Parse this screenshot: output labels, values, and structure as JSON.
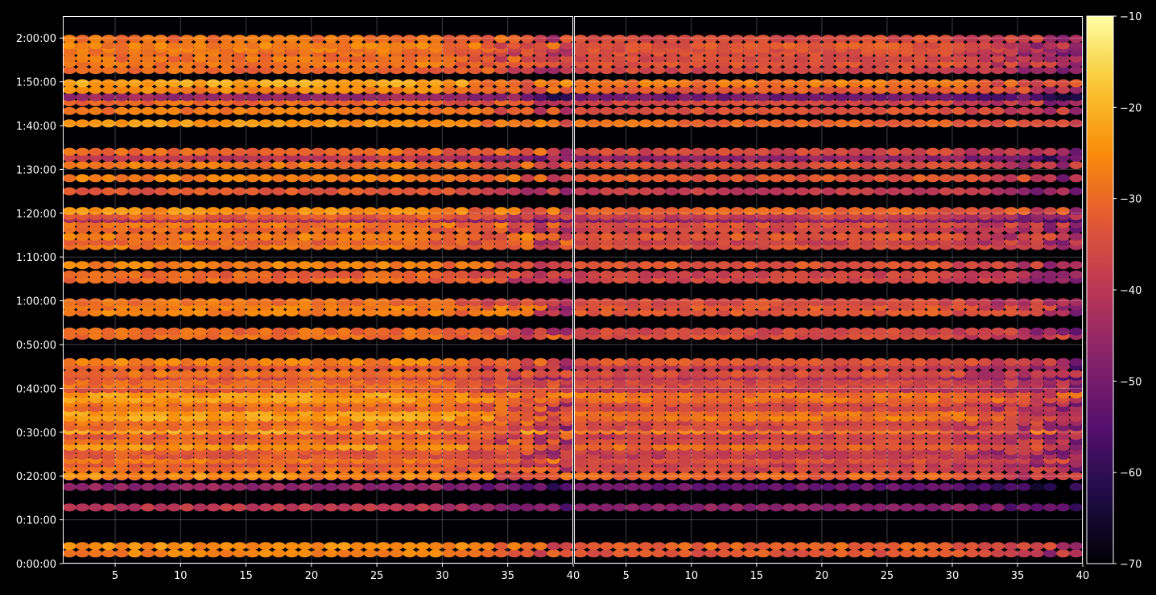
{
  "chart_data": {
    "type": "heatmap",
    "title": "",
    "xlabel": "",
    "ylabel": "",
    "panels": [
      {
        "name": "",
        "xlim": [
          1,
          40
        ],
        "x_ticks": [
          5,
          10,
          15,
          20,
          25,
          30,
          35,
          40
        ],
        "x_tick_labels": [
          "5",
          "10",
          "15",
          "20",
          "25",
          "30",
          "35",
          "40"
        ]
      },
      {
        "name": "",
        "xlim": [
          1,
          40
        ],
        "x_ticks": [
          5,
          10,
          15,
          20,
          25,
          30,
          35,
          40
        ],
        "x_tick_labels": [
          "5",
          "10",
          "15",
          "20",
          "25",
          "30",
          "35",
          "40"
        ]
      }
    ],
    "ylim_seconds": [
      0,
      7500
    ],
    "y_ticks_seconds": [
      0,
      600,
      1200,
      1800,
      2400,
      3000,
      3600,
      4200,
      4800,
      5400,
      6000,
      6600,
      7200
    ],
    "y_tick_labels": [
      "0:00:00",
      "0:10:00",
      "0:20:00",
      "0:30:00",
      "0:40:00",
      "0:50:00",
      "1:00:00",
      "1:10:00",
      "1:20:00",
      "1:30:00",
      "1:40:00",
      "1:50:00",
      "2:00:00"
    ],
    "grid": true,
    "colormap": "inferno",
    "colorbar": {
      "min": -70,
      "max": -10,
      "ticks": [
        -70,
        -60,
        -50,
        -40,
        -30,
        -20,
        -10
      ],
      "tick_labels": [
        "−70",
        "−60",
        "−50",
        "−40",
        "−30",
        "−20",
        "−10"
      ]
    },
    "row_times_seconds": [
      140,
      240,
      770,
      1050,
      1190,
      1200,
      1300,
      1370,
      1420,
      1480,
      1540,
      1600,
      1680,
      1750,
      1820,
      1870,
      1940,
      2000,
      2070,
      2130,
      2200,
      2250,
      2320,
      2390,
      2450,
      2500,
      2560,
      2600,
      2700,
      2760,
      3120,
      3180,
      3440,
      3520,
      3580,
      3890,
      3960,
      4090,
      4350,
      4410,
      4480,
      4580,
      4650,
      4720,
      4760,
      4830,
      5100,
      5280,
      5460,
      5560,
      5640,
      6030,
      6200,
      6320,
      6390,
      6490,
      6580,
      6760,
      6850,
      6920,
      7000,
      7050,
      7100,
      7190
    ],
    "row_levels_db_panel1": [
      -27,
      -25,
      -40,
      -46,
      -52,
      -25,
      -30,
      -32,
      -28,
      -33,
      -32,
      -24,
      -30,
      -32,
      -23,
      -30,
      -29,
      -22,
      -23,
      -30,
      -28,
      -23,
      -23,
      -33,
      -29,
      -30,
      -35,
      -29,
      -33,
      -27,
      -29,
      -30,
      -27,
      -27,
      -29,
      -30,
      -31,
      -27,
      -28,
      -31,
      -27,
      -31,
      -28,
      -40,
      -32,
      -25,
      -33,
      -27,
      -28,
      -40,
      -30,
      -24,
      -28,
      -30,
      -45,
      -26,
      -22,
      -30,
      -28,
      -29,
      -29,
      -28,
      -27,
      -29
    ],
    "row_levels_db_panel2": [
      -33,
      -31,
      -46,
      -52,
      -58,
      -31,
      -36,
      -38,
      -34,
      -39,
      -38,
      -30,
      -36,
      -38,
      -29,
      -36,
      -35,
      -28,
      -29,
      -36,
      -34,
      -29,
      -29,
      -39,
      -35,
      -36,
      -41,
      -35,
      -39,
      -33,
      -35,
      -36,
      -33,
      -33,
      -35,
      -36,
      -37,
      -33,
      -34,
      -37,
      -33,
      -37,
      -34,
      -46,
      -38,
      -31,
      -39,
      -33,
      -34,
      -46,
      -36,
      -30,
      -34,
      -36,
      -51,
      -32,
      -28,
      -36,
      -34,
      -35,
      -35,
      -34,
      -33,
      -35
    ],
    "edge_fade_start_x": 28,
    "edge_fade_db_per_unit": 1.6
  }
}
